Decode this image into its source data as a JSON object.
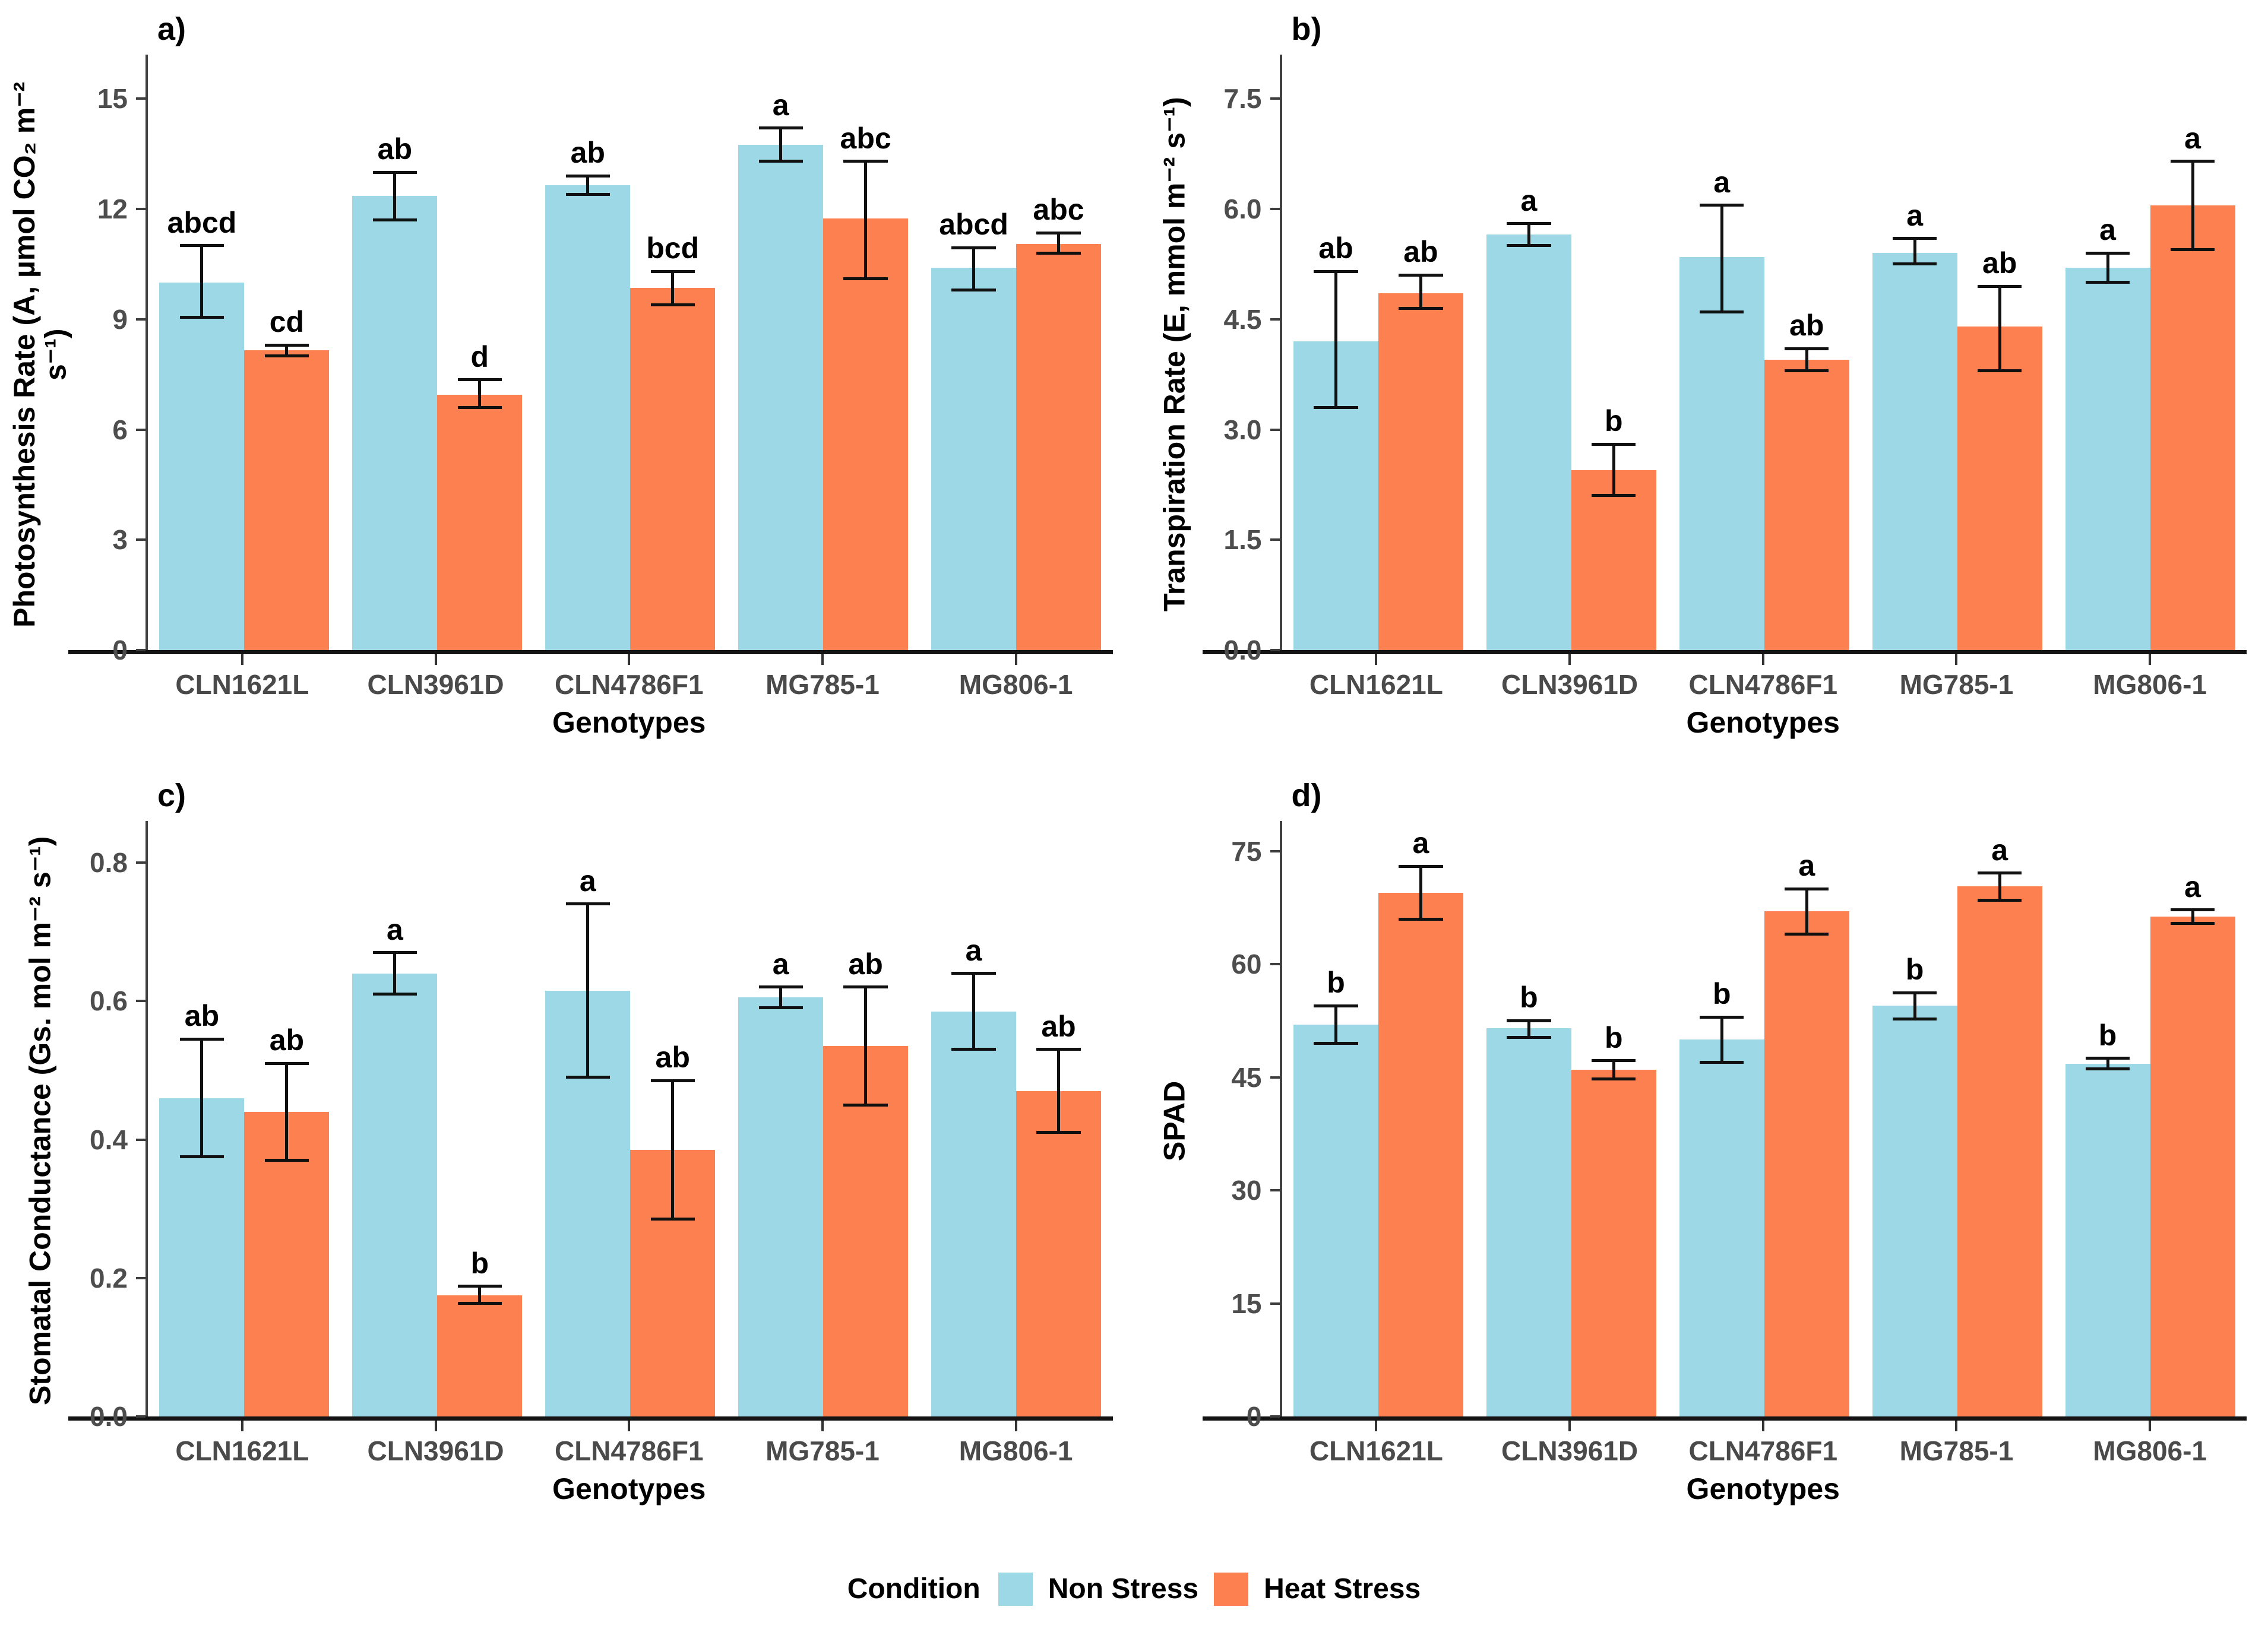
{
  "legend": {
    "title": "Condition",
    "items": [
      {
        "label": "Non Stress",
        "color": "#9CD8E6"
      },
      {
        "label": "Heat Stress",
        "color": "#FC8050"
      }
    ]
  },
  "chart_data": [
    {
      "id": "a",
      "tag": "a)",
      "type": "bar",
      "ylabel": "Photosynthesis Rate (A, µmol CO₂ m⁻² s⁻¹)",
      "xlabel": "Genotypes",
      "categories": [
        "CLN1621L",
        "CLN3961D",
        "CLN4786F1",
        "MG785-1",
        "MG806-1"
      ],
      "yticks": [
        0,
        3,
        6,
        9,
        12,
        15
      ],
      "ytick_labels": [
        "0",
        "3",
        "6",
        "9",
        "12",
        "15"
      ],
      "ylim": [
        0,
        16.2
      ],
      "ymax": 16.2,
      "legend_position": "bottom-shared",
      "grid": false,
      "series": [
        {
          "name": "Non Stress",
          "values": [
            10.0,
            12.35,
            12.65,
            13.75,
            10.4
          ],
          "err_low": [
            9.05,
            11.7,
            12.4,
            13.3,
            9.8
          ],
          "err_high": [
            11.0,
            13.0,
            12.9,
            14.2,
            10.95
          ],
          "letters": [
            "abcd",
            "ab",
            "ab",
            "a",
            "abcd"
          ]
        },
        {
          "name": "Heat Stress",
          "values": [
            8.15,
            6.95,
            9.85,
            11.75,
            11.05
          ],
          "err_low": [
            8.0,
            6.6,
            9.4,
            10.1,
            10.8
          ],
          "err_high": [
            8.3,
            7.35,
            10.3,
            13.3,
            11.35
          ],
          "letters": [
            "cd",
            "d",
            "bcd",
            "abc",
            "abc"
          ]
        }
      ]
    },
    {
      "id": "b",
      "tag": "b)",
      "type": "bar",
      "ylabel": "Transpiration Rate (E, mmol m⁻² s⁻¹)",
      "xlabel": "Genotypes",
      "categories": [
        "CLN1621L",
        "CLN3961D",
        "CLN4786F1",
        "MG785-1",
        "MG806-1"
      ],
      "yticks": [
        0,
        1.5,
        3,
        4.5,
        6,
        7.5
      ],
      "ytick_labels": [
        "0.0",
        "1.5",
        "3.0",
        "4.5",
        "6.0",
        "7.5"
      ],
      "ylim": [
        0,
        8.1
      ],
      "ymax": 8.1,
      "legend_position": "bottom-shared",
      "grid": false,
      "series": [
        {
          "name": "Non Stress",
          "values": [
            4.2,
            5.65,
            5.35,
            5.4,
            5.2
          ],
          "err_low": [
            3.3,
            5.5,
            4.6,
            5.25,
            5.0
          ],
          "err_high": [
            5.15,
            5.8,
            6.05,
            5.6,
            5.4
          ],
          "letters": [
            "ab",
            "a",
            "a",
            "a",
            "a"
          ]
        },
        {
          "name": "Heat Stress",
          "values": [
            4.85,
            2.45,
            3.95,
            4.4,
            6.05
          ],
          "err_low": [
            4.65,
            2.1,
            3.8,
            3.8,
            5.45
          ],
          "err_high": [
            5.1,
            2.8,
            4.1,
            4.95,
            6.65
          ],
          "letters": [
            "ab",
            "b",
            "ab",
            "ab",
            "a"
          ]
        }
      ]
    },
    {
      "id": "c",
      "tag": "c)",
      "type": "bar",
      "ylabel": "Stomatal Conductance (Gs. mol m⁻² s⁻¹)",
      "xlabel": "Genotypes",
      "categories": [
        "CLN1621L",
        "CLN3961D",
        "CLN4786F1",
        "MG785-1",
        "MG806-1"
      ],
      "yticks": [
        0,
        0.2,
        0.4,
        0.6,
        0.8
      ],
      "ytick_labels": [
        "0.0",
        "0.2",
        "0.4",
        "0.6",
        "0.8"
      ],
      "ylim": [
        0,
        0.86
      ],
      "ymax": 0.86,
      "legend_position": "bottom-shared",
      "grid": false,
      "series": [
        {
          "name": "Non Stress",
          "values": [
            0.46,
            0.64,
            0.615,
            0.605,
            0.585
          ],
          "err_low": [
            0.375,
            0.61,
            0.49,
            0.59,
            0.53
          ],
          "err_high": [
            0.545,
            0.67,
            0.74,
            0.62,
            0.64
          ],
          "letters": [
            "ab",
            "a",
            "a",
            "a",
            "a"
          ]
        },
        {
          "name": "Heat Stress",
          "values": [
            0.44,
            0.175,
            0.385,
            0.535,
            0.47
          ],
          "err_low": [
            0.37,
            0.163,
            0.285,
            0.45,
            0.41
          ],
          "err_high": [
            0.51,
            0.188,
            0.485,
            0.62,
            0.53
          ],
          "letters": [
            "ab",
            "b",
            "ab",
            "ab",
            "ab"
          ]
        }
      ]
    },
    {
      "id": "d",
      "tag": "d)",
      "type": "bar",
      "ylabel": "SPAD",
      "xlabel": "Genotypes",
      "categories": [
        "CLN1621L",
        "CLN3961D",
        "CLN4786F1",
        "MG785-1",
        "MG806-1"
      ],
      "yticks": [
        0,
        15,
        30,
        45,
        60,
        75
      ],
      "ytick_labels": [
        "0",
        "15",
        "30",
        "45",
        "60",
        "75"
      ],
      "ylim": [
        0,
        79
      ],
      "ymax": 79,
      "legend_position": "bottom-shared",
      "grid": false,
      "series": [
        {
          "name": "Non Stress",
          "values": [
            52,
            51.5,
            50,
            54.5,
            46.8
          ],
          "err_low": [
            49.5,
            50.3,
            47,
            52.7,
            46.1
          ],
          "err_high": [
            54.5,
            52.5,
            53,
            56.2,
            47.5
          ],
          "letters": [
            "b",
            "b",
            "b",
            "b",
            "b"
          ]
        },
        {
          "name": "Heat Stress",
          "values": [
            69.5,
            46,
            67,
            70.3,
            66.3
          ],
          "err_low": [
            66,
            44.8,
            64,
            68.5,
            65.4
          ],
          "err_high": [
            73,
            47.2,
            70,
            72.1,
            67.2
          ],
          "letters": [
            "a",
            "b",
            "a",
            "a",
            "a"
          ]
        }
      ]
    }
  ]
}
